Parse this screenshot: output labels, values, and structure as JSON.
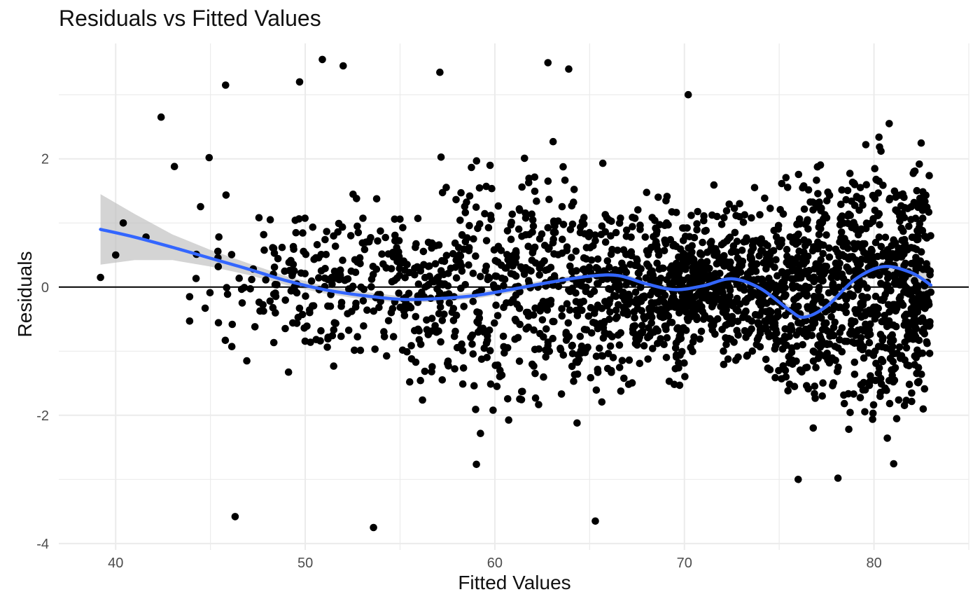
{
  "chart_data": {
    "type": "scatter",
    "title": "Residuals vs Fitted Values",
    "xlabel": "Fitted Values",
    "ylabel": "Residuals",
    "xlim": [
      37,
      85
    ],
    "ylim": [
      -4.1,
      3.8
    ],
    "x_ticks": [
      40,
      50,
      60,
      70,
      80
    ],
    "x_tick_labels": [
      "40",
      "50",
      "60",
      "70",
      "80"
    ],
    "y_ticks": [
      -4,
      -2,
      0,
      2
    ],
    "y_tick_labels": [
      "-4",
      "-2",
      "0",
      "2"
    ],
    "grid": true,
    "reference_line_y": 0,
    "point_color": "#000000",
    "smooth_color": "#3366ff",
    "ribbon_color": "#bdbdbd",
    "points": {
      "count": 2400,
      "x_range": [
        39.2,
        83.0
      ],
      "y_range": [
        -3.75,
        3.55
      ],
      "sample": [
        {
          "x": 39.2,
          "y": 0.15
        },
        {
          "x": 40.0,
          "y": 0.5
        },
        {
          "x": 40.4,
          "y": 1.0
        },
        {
          "x": 41.6,
          "y": 0.78
        },
        {
          "x": 42.4,
          "y": 2.65
        },
        {
          "x": 43.1,
          "y": 1.88
        },
        {
          "x": 43.9,
          "y": -0.15
        },
        {
          "x": 43.9,
          "y": -0.53
        },
        {
          "x": 45.8,
          "y": 3.15
        },
        {
          "x": 46.3,
          "y": -3.58
        },
        {
          "x": 49.7,
          "y": 3.2
        },
        {
          "x": 50.9,
          "y": 3.55
        },
        {
          "x": 52.0,
          "y": 3.45
        },
        {
          "x": 53.6,
          "y": -3.75
        },
        {
          "x": 57.1,
          "y": 3.35
        },
        {
          "x": 62.8,
          "y": 3.5
        },
        {
          "x": 63.9,
          "y": 3.4
        },
        {
          "x": 65.3,
          "y": -3.65
        },
        {
          "x": 70.2,
          "y": 3.0
        },
        {
          "x": 76.0,
          "y": -3.0
        },
        {
          "x": 78.1,
          "y": -2.98
        },
        {
          "x": 80.8,
          "y": 2.55
        },
        {
          "x": 83.0,
          "y": -0.08
        }
      ]
    },
    "smooth": {
      "method": "loess",
      "fit": [
        {
          "x": 39.2,
          "y": 0.9,
          "lo": 0.35,
          "hi": 1.45
        },
        {
          "x": 41,
          "y": 0.78,
          "lo": 0.42,
          "hi": 1.14
        },
        {
          "x": 43,
          "y": 0.62,
          "lo": 0.42,
          "hi": 0.82
        },
        {
          "x": 45,
          "y": 0.45,
          "lo": 0.32,
          "hi": 0.58
        },
        {
          "x": 47,
          "y": 0.28,
          "lo": 0.19,
          "hi": 0.37
        },
        {
          "x": 49,
          "y": 0.1,
          "lo": 0.03,
          "hi": 0.17
        },
        {
          "x": 51,
          "y": -0.04,
          "lo": -0.1,
          "hi": 0.02
        },
        {
          "x": 53,
          "y": -0.13,
          "lo": -0.19,
          "hi": -0.07
        },
        {
          "x": 55,
          "y": -0.19,
          "lo": -0.24,
          "hi": -0.14
        },
        {
          "x": 57,
          "y": -0.18,
          "lo": -0.23,
          "hi": -0.13
        },
        {
          "x": 59,
          "y": -0.13,
          "lo": -0.18,
          "hi": -0.08
        },
        {
          "x": 61,
          "y": -0.03,
          "lo": -0.08,
          "hi": 0.02
        },
        {
          "x": 63,
          "y": 0.08,
          "lo": 0.03,
          "hi": 0.13
        },
        {
          "x": 65,
          "y": 0.17,
          "lo": 0.12,
          "hi": 0.22
        },
        {
          "x": 66.5,
          "y": 0.18,
          "lo": 0.13,
          "hi": 0.23
        },
        {
          "x": 68,
          "y": 0.05,
          "lo": 0.0,
          "hi": 0.1
        },
        {
          "x": 69.5,
          "y": -0.04,
          "lo": -0.09,
          "hi": 0.01
        },
        {
          "x": 71,
          "y": 0.02,
          "lo": -0.03,
          "hi": 0.07
        },
        {
          "x": 72.5,
          "y": 0.13,
          "lo": 0.07,
          "hi": 0.19
        },
        {
          "x": 74,
          "y": -0.02,
          "lo": -0.08,
          "hi": 0.04
        },
        {
          "x": 75.5,
          "y": -0.35,
          "lo": -0.42,
          "hi": -0.28
        },
        {
          "x": 76.3,
          "y": -0.47,
          "lo": -0.55,
          "hi": -0.39
        },
        {
          "x": 77.5,
          "y": -0.3,
          "lo": -0.38,
          "hi": -0.22
        },
        {
          "x": 79,
          "y": 0.12,
          "lo": 0.04,
          "hi": 0.2
        },
        {
          "x": 80.5,
          "y": 0.32,
          "lo": 0.23,
          "hi": 0.41
        },
        {
          "x": 82,
          "y": 0.22,
          "lo": 0.08,
          "hi": 0.36
        },
        {
          "x": 83,
          "y": 0.03,
          "lo": -0.35,
          "hi": 0.41
        }
      ]
    }
  }
}
